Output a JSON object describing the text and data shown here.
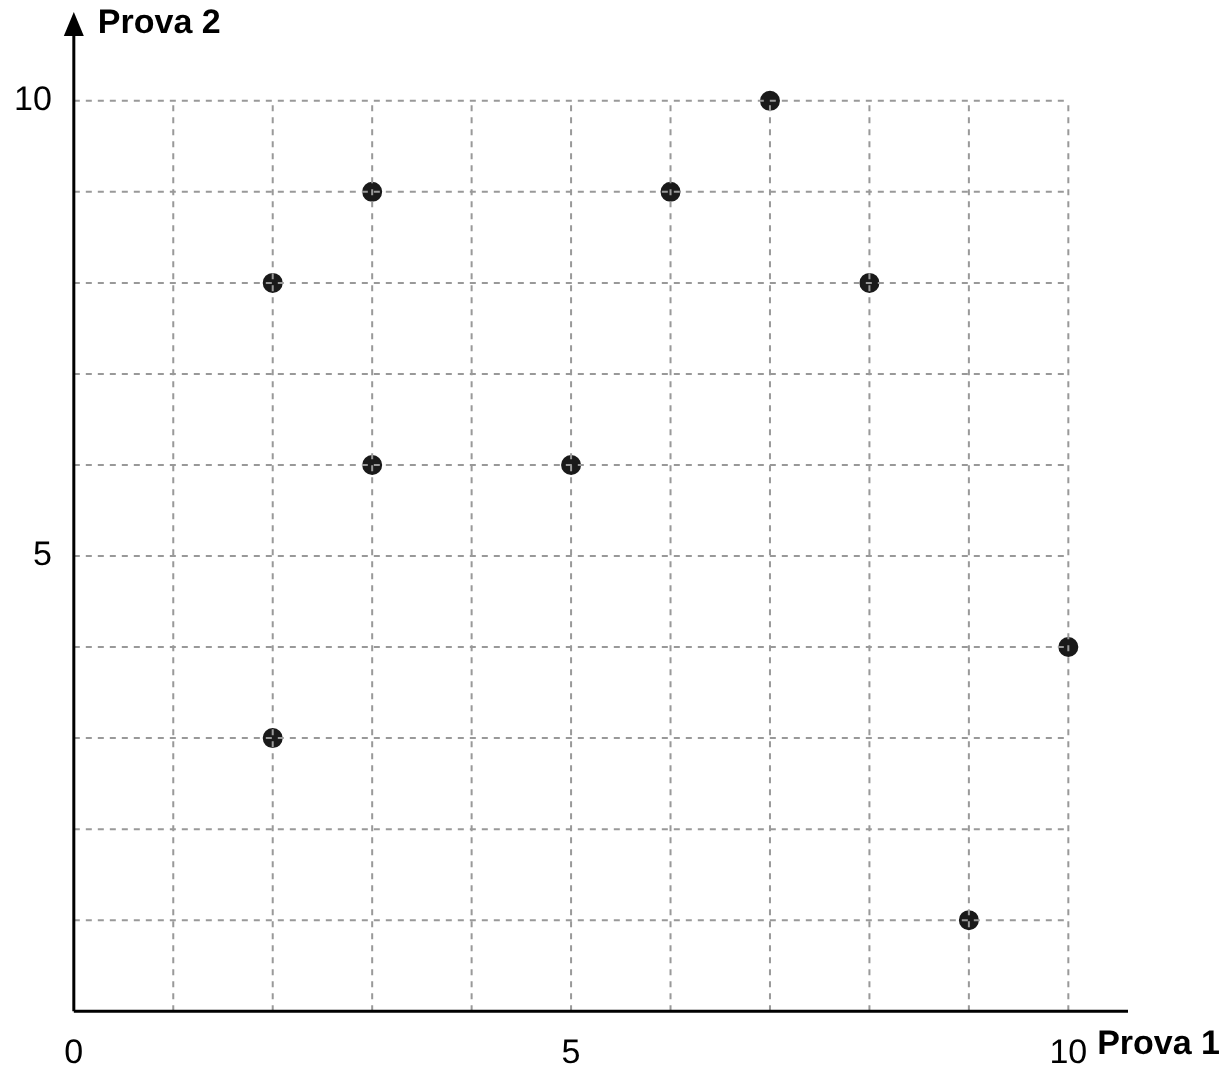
{
  "chart_data": {
    "type": "scatter",
    "xlabel": "Prova 1",
    "ylabel": "Prova 2",
    "x": [
      2,
      2,
      3,
      3,
      5,
      6,
      7,
      8,
      9,
      10
    ],
    "values": [
      8,
      3,
      9,
      6,
      6,
      9,
      10,
      8,
      1,
      4
    ],
    "color": "#1a1a1a",
    "marker": "circle",
    "grid": true,
    "xlim": [
      0,
      10.6
    ],
    "ylim": [
      0,
      10.8
    ],
    "xticks": [
      0,
      {
        "value": 1,
        "label": null
      },
      {
        "value": 2,
        "label": null
      },
      {
        "value": 3,
        "label": null
      },
      {
        "value": 4,
        "label": null
      },
      5,
      {
        "value": 6,
        "label": null
      },
      {
        "value": 7,
        "label": null
      },
      {
        "value": 8,
        "label": null
      },
      {
        "value": 9,
        "label": null
      },
      10
    ],
    "yticks": [
      {
        "value": 0,
        "label": null
      },
      {
        "value": 1,
        "label": null
      },
      {
        "value": 2,
        "label": null
      },
      {
        "value": 3,
        "label": null
      },
      {
        "value": 4,
        "label": null
      },
      5,
      {
        "value": 6,
        "label": null
      },
      {
        "value": 7,
        "label": null
      },
      {
        "value": 8,
        "label": null
      },
      {
        "value": 9,
        "label": null
      },
      10
    ]
  }
}
